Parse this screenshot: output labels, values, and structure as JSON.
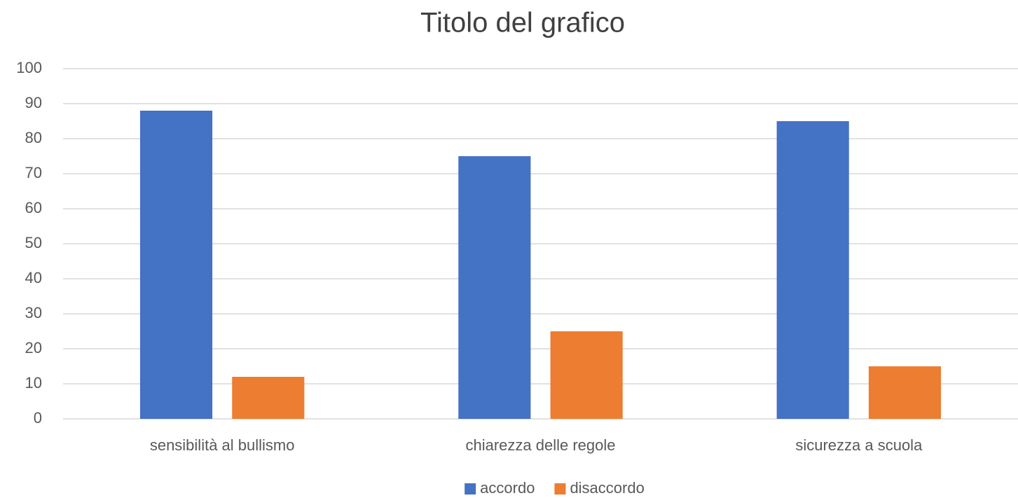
{
  "chart_data": {
    "type": "bar",
    "title": "Titolo del grafico",
    "categories": [
      "sensibilità al bullismo",
      "chiarezza delle regole",
      "sicurezza a scuola"
    ],
    "series": [
      {
        "name": "accordo",
        "color": "#4472c4",
        "values": [
          88,
          75,
          85
        ]
      },
      {
        "name": "disaccordo",
        "color": "#ed7d31",
        "values": [
          12,
          25,
          15
        ]
      }
    ],
    "ylim": [
      0,
      100
    ],
    "yticks": [
      0,
      10,
      20,
      30,
      40,
      50,
      60,
      70,
      80,
      90,
      100
    ],
    "grid": true,
    "legend": "bottom"
  }
}
